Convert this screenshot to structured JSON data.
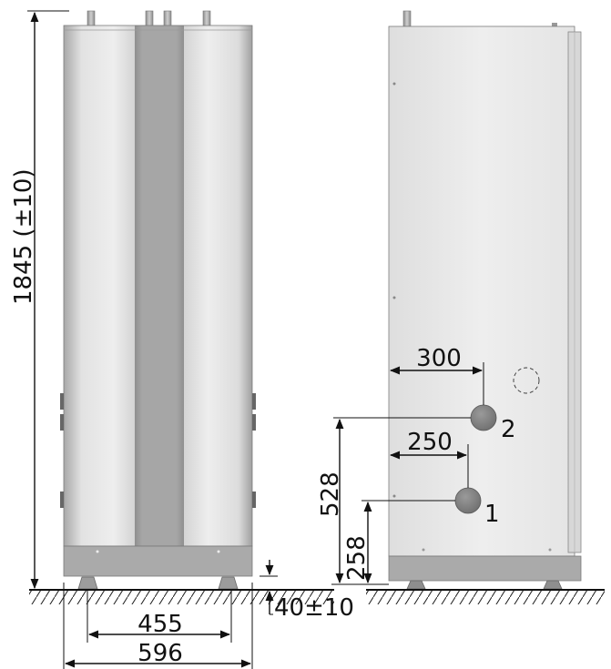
{
  "dimensions": {
    "height": "1845 (±10)",
    "foot_adjust": "40±10",
    "inner_width": "455",
    "outer_width": "596",
    "pipe2_horizontal": "300",
    "pipe1_horizontal": "250",
    "pipe2_height": "528",
    "pipe1_height": "258"
  },
  "callouts": {
    "pipe1": "1",
    "pipe2": "2"
  },
  "colors": {
    "body_light": "#e6e6e6",
    "body_mid": "#c9c9c9",
    "center_stripe": "#a3a3a3",
    "base": "#a9a9a9",
    "pipe_connection": "#8a8a8a",
    "side_panel": "#e9e9e9"
  }
}
